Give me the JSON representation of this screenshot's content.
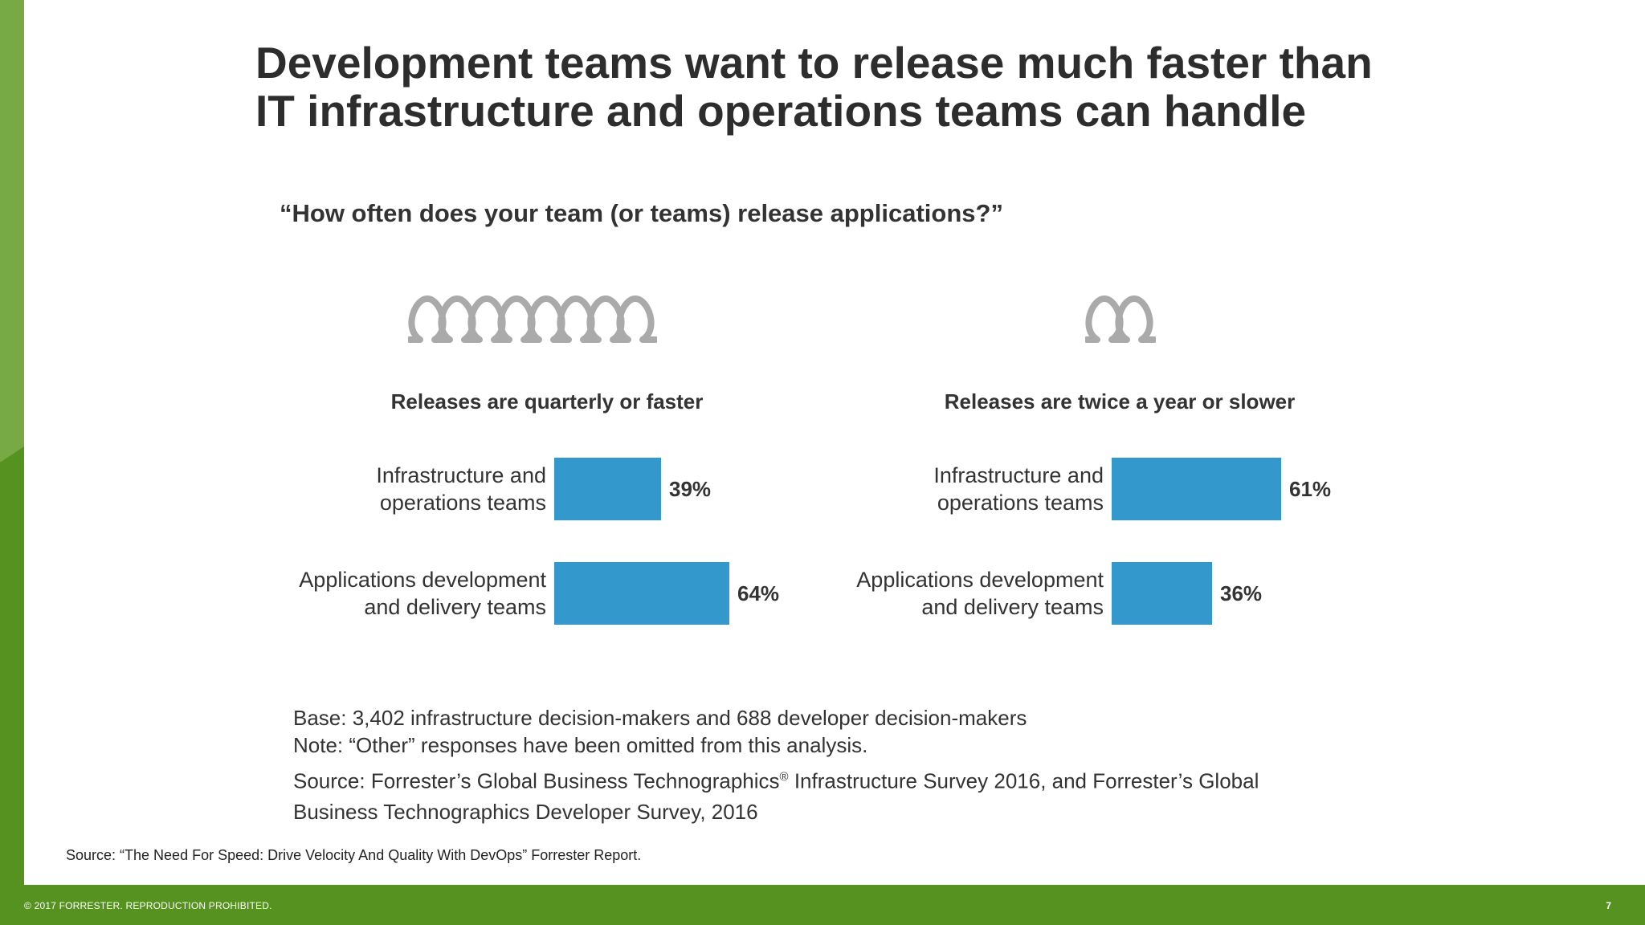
{
  "slide": {
    "title_line1": "Development teams want to release much faster than",
    "title_line2": "IT infrastructure and operations teams can handle",
    "question": "“How often does your team (or teams) release applications?”",
    "base_note": "Base: 3,402 infrastructure decision-makers and 688 developer decision-makers",
    "other_note": "Note: “Other” responses have been omitted from this analysis.",
    "source_line1_a": "Source: Forrester’s Global Business Technographics",
    "source_reg": "®",
    "source_line1_b": " Infrastructure Survey 2016, and Forrester’s Global",
    "source_line2": "Business Technographics Developer Survey, 2016",
    "report_source": "Source: “The Need For Speed: Drive Velocity And Quality With DevOps” Forrester Report.",
    "footer_copyright": "© 2017 FORRESTER. REPRODUCTION PROHIBITED.",
    "page_number": "7"
  },
  "colors": {
    "bar": "#3399cc",
    "green_dark": "#55921f",
    "green_light": "#77aa44",
    "icon": "#aaaaaa"
  },
  "icons": {
    "left": "loop-spring-icon",
    "right": "loop-spring-icon"
  },
  "chart_data": [
    {
      "type": "bar",
      "orientation": "horizontal",
      "title": "Releases are quarterly or faster",
      "icon_loops": 8,
      "categories": [
        "Infrastructure and operations teams",
        "Applications development and delivery teams"
      ],
      "category_lines": [
        [
          "Infrastructure and",
          "operations teams"
        ],
        [
          "Applications development",
          "and delivery teams"
        ]
      ],
      "values": [
        39,
        64
      ],
      "value_labels": [
        "39%",
        "64%"
      ],
      "unit": "%",
      "xlim": [
        0,
        100
      ]
    },
    {
      "type": "bar",
      "orientation": "horizontal",
      "title": "Releases are twice a year or slower",
      "icon_loops": 2,
      "categories": [
        "Infrastructure and operations teams",
        "Applications development and delivery teams"
      ],
      "category_lines": [
        [
          "Infrastructure and",
          "operations teams"
        ],
        [
          "Applications development",
          "and delivery teams"
        ]
      ],
      "values": [
        61,
        36
      ],
      "value_labels": [
        "61%",
        "36%"
      ],
      "unit": "%",
      "xlim": [
        0,
        100
      ]
    }
  ]
}
